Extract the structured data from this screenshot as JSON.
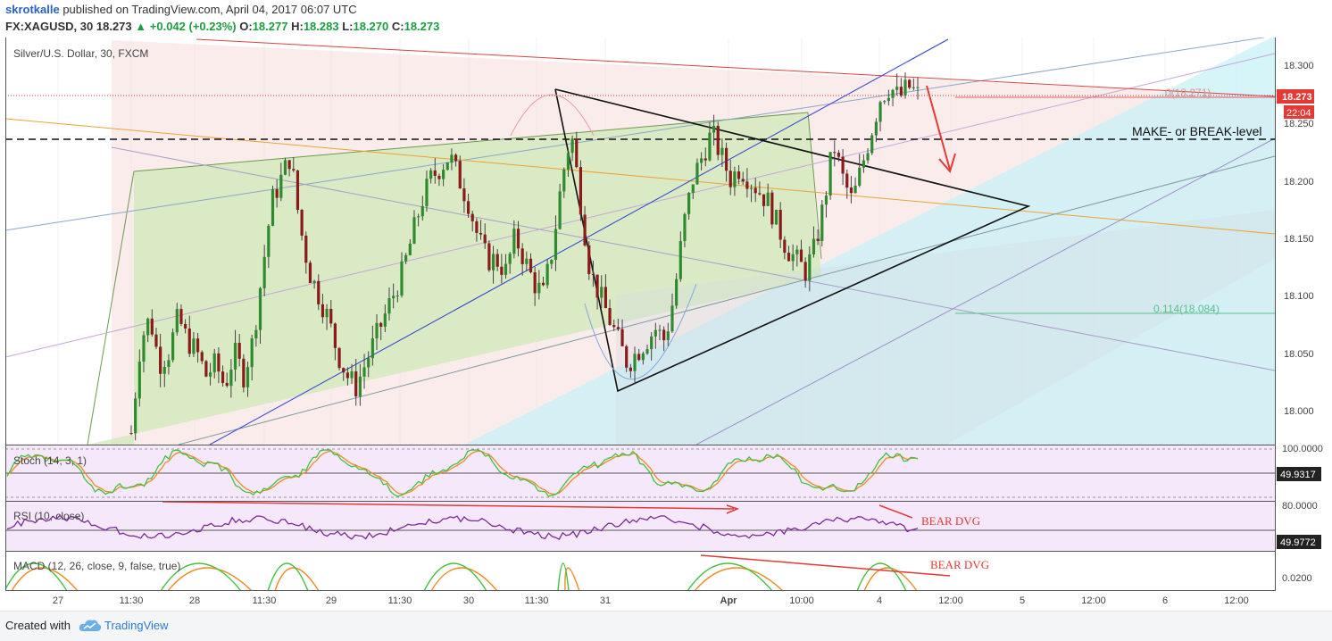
{
  "header": {
    "author": "skrotkalle",
    "published": "published on TradingView.com, April 04, 2017 06:07 UTC",
    "symbol": "FX:XAGUSD, 30",
    "last": "18.273",
    "change": "+0.042 (+0.23%)",
    "o_label": "O:",
    "o_val": "18.277",
    "h_label": "H:",
    "h_val": "18.283",
    "l_label": "L:",
    "l_val": "18.270",
    "c_label": "C:",
    "c_val": "18.273"
  },
  "main_pane": {
    "title": "Silver/U.S. Dollar, 30, FXCM",
    "y_ticks": [
      "18.300",
      "18.250",
      "18.200",
      "18.150",
      "18.100",
      "18.050",
      "18.000"
    ],
    "price_badge": "18.273",
    "timer_badge": "22:04",
    "fib_top": "0(18.271)",
    "fib_bottom": "0.114(18.084)",
    "level_label": "MAKE- or BREAK-level"
  },
  "stoch_pane": {
    "title": "Stoch (14, 3, 1)",
    "y_tick": "100.0000",
    "badge": "49.9317"
  },
  "rsi_pane": {
    "title": "RSI (10, close)",
    "y_tick": "80.0000",
    "badge": "49.9772",
    "annotation": "BEAR DVG"
  },
  "macd_pane": {
    "title": "MACD (12, 26, close, 9, false, true)",
    "y_tick": "0.0200",
    "annotation": "BEAR DVG"
  },
  "x_axis": [
    "27",
    "11:30",
    "28",
    "11:30",
    "29",
    "11:30",
    "30",
    "11:30",
    "31",
    "Apr",
    "10:00",
    "4",
    "12:00",
    "5",
    "12:00",
    "6",
    "12:00"
  ],
  "footer": {
    "created_with": "Created with",
    "brand": "TradingView"
  },
  "colors": {
    "up": "#1a9e3f",
    "price_badge": "#e53935",
    "stoch_k": "#43c043",
    "stoch_d": "#f08a24",
    "rsi": "#7b2a9c",
    "macd": "#43c043",
    "signal": "#f08a24",
    "annotation": "#e53935"
  },
  "chart_data": {
    "type": "candlestick",
    "title": "Silver/U.S. Dollar, 30, FXCM",
    "ylim": [
      17.97,
      18.32
    ],
    "y_ticks": [
      18.3,
      18.25,
      18.2,
      18.15,
      18.1,
      18.05,
      18.0
    ],
    "x_ticks": [
      "27",
      "11:30",
      "28",
      "11:30",
      "29",
      "11:30",
      "30",
      "11:30",
      "31",
      "Apr",
      "10:00",
      "4",
      "12:00",
      "5",
      "12:00",
      "6",
      "12:00"
    ],
    "last_price": 18.273,
    "fib_levels": [
      {
        "label": "0",
        "value": 18.271
      },
      {
        "label": "0.114",
        "value": 18.084
      }
    ],
    "close_path": [
      17.98,
      18.06,
      18.08,
      18.04,
      18.05,
      18.08,
      18.06,
      18.05,
      18.03,
      18.04,
      18.02,
      18.05,
      18.03,
      18.06,
      18.12,
      18.18,
      18.2,
      18.22,
      18.16,
      18.12,
      18.1,
      18.08,
      18.05,
      18.03,
      18.02,
      18.04,
      18.06,
      18.08,
      18.1,
      18.12,
      18.15,
      18.18,
      18.2,
      18.21,
      18.22,
      18.2,
      18.18,
      18.15,
      18.13,
      18.13,
      18.12,
      18.15,
      18.13,
      18.11,
      18.1,
      18.14,
      18.2,
      18.24,
      18.18,
      18.12,
      18.1,
      18.08,
      18.06,
      18.04,
      18.05,
      18.06,
      18.07,
      18.06,
      18.1,
      18.16,
      18.2,
      18.22,
      18.24,
      18.22,
      18.2,
      18.21,
      18.2,
      18.19,
      18.18,
      18.16,
      18.14,
      18.13,
      18.12,
      18.14,
      18.18,
      18.23,
      18.2,
      18.18,
      18.21,
      18.24,
      18.27,
      18.28,
      18.27,
      18.28,
      18.273
    ],
    "indicators": [
      {
        "name": "Stoch (14, 3, 1)",
        "last": 49.9317
      },
      {
        "name": "RSI (10, close)",
        "last": 49.9772
      },
      {
        "name": "MACD (12, 26, close, 9, false, true)"
      }
    ]
  }
}
